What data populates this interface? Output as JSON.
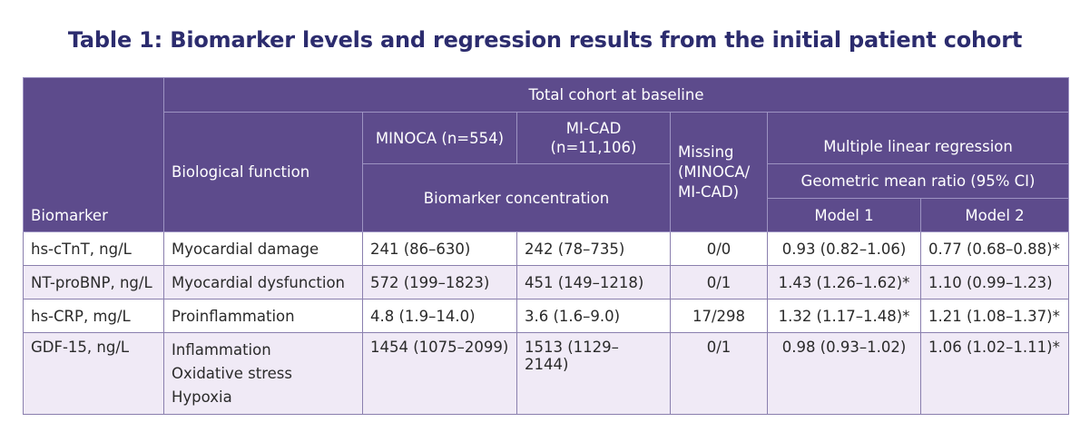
{
  "title": "Table 1: Biomarker levels and regression results from the initial patient cohort",
  "header": {
    "biomarker": "Biomarker",
    "total_cohort": "Total cohort at baseline",
    "biological_function": "Biological function",
    "minoca": "MINOCA (n=554)",
    "micad_line1": "MI-CAD",
    "micad_line2": "(n=11,106)",
    "missing_line1": "Missing",
    "missing_line2": "(MINOCA/",
    "missing_line3": "MI-CAD)",
    "regression": "Multiple linear regression",
    "biomarker_concentration": "Biomarker concentration",
    "gmr": "Geometric mean ratio (95% CI)",
    "model1": "Model 1",
    "model2": "Model 2"
  },
  "rows": [
    {
      "biomarker": "hs-cTnT, ng/L",
      "function": [
        "Myocardial damage"
      ],
      "minoca": "241 (86–630)",
      "micad": "242 (78–735)",
      "missing": "0/0",
      "model1": "0.93 (0.82–1.06)",
      "model2": "0.77 (0.68–0.88)*"
    },
    {
      "biomarker": "NT-proBNP, ng/L",
      "function": [
        "Myocardial dysfunction"
      ],
      "minoca": "572 (199–1823)",
      "micad": "451 (149–1218)",
      "missing": "0/1",
      "model1": "1.43 (1.26–1.62)*",
      "model2": "1.10 (0.99–1.23)"
    },
    {
      "biomarker": "hs-CRP, mg/L",
      "function": [
        "Proinflammation"
      ],
      "minoca": "4.8 (1.9–14.0)",
      "micad": "3.6 (1.6–9.0)",
      "missing": "17/298",
      "model1": "1.32 (1.17–1.48)*",
      "model2": "1.21 (1.08–1.37)*"
    },
    {
      "biomarker": "GDF-15, ng/L",
      "function": [
        "Inflammation",
        "Oxidative stress",
        "Hypoxia"
      ],
      "minoca": "1454 (1075–2099)",
      "micad": "1513 (1129–2144)",
      "missing": "0/1",
      "model1": "0.98 (0.93–1.02)",
      "model2": "1.06 (1.02–1.11)*"
    }
  ]
}
